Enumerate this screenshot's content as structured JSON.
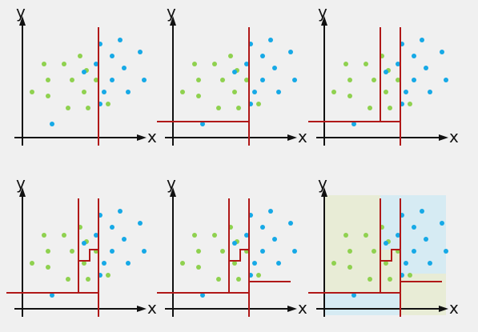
{
  "axis_labels": {
    "x": "x",
    "y": "y"
  },
  "colors": {
    "background": "#f0f0f0",
    "axis": "#111111",
    "split_line": "#b01818",
    "class_a_point": "#8fd14f",
    "class_b_point": "#16a9e6",
    "region_a_fill": "#e8ecd6",
    "region_b_fill": "#d6ebf3"
  },
  "panels": [
    {
      "step": 1,
      "splits": 1,
      "shaded_regions": false
    },
    {
      "step": 2,
      "splits": 2,
      "shaded_regions": false
    },
    {
      "step": 3,
      "splits": 3,
      "shaded_regions": false
    },
    {
      "step": 4,
      "splits": 4,
      "shaded_regions": false
    },
    {
      "step": 5,
      "splits": 5,
      "shaded_regions": false
    },
    {
      "step": 6,
      "splits": 5,
      "shaded_regions": true
    }
  ]
}
